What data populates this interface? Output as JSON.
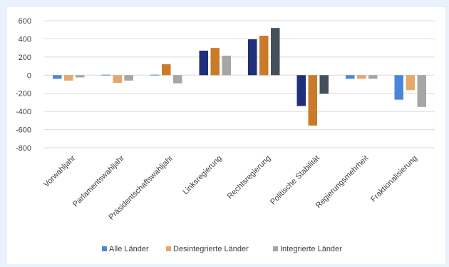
{
  "colors": {
    "background": "#e9f1fa",
    "plot_background": "#ffffff",
    "grid": "#d9d9d9"
  },
  "chart_data": {
    "type": "bar",
    "title": "",
    "xlabel": "",
    "ylabel": "",
    "ylim": [
      -800,
      600
    ],
    "y_ticks": [
      600,
      400,
      200,
      0,
      -200,
      -400,
      -600,
      -800
    ],
    "grid": true,
    "legend_position": "bottom",
    "categories": [
      "Vorwahljahr",
      "Parlamentswahljahr",
      "Präsidentschaftswahljahr",
      "Linksregierung",
      "Rechtsregierung",
      "Politische Stabilität",
      "Regierungsmehrheit",
      "Fraktionalisierung"
    ],
    "series": [
      {
        "name": "Alle Länder",
        "legend_color": "#4a86d8",
        "values": [
          -40,
          5,
          5,
          270,
          395,
          -340,
          -40,
          -270
        ],
        "colors": [
          "#4a86d8",
          "#4a86d8",
          "#4a86d8",
          "#1f2f7a",
          "#1f2f7a",
          "#1f2f7a",
          "#4a86d8",
          "#4a86d8"
        ]
      },
      {
        "name": "Desintegrierte Länder",
        "legend_color": "#e5a86a",
        "values": [
          -60,
          -85,
          120,
          300,
          435,
          -555,
          -40,
          -165
        ],
        "colors": [
          "#e5a86a",
          "#e5a86a",
          "#c97b29",
          "#c97b29",
          "#c97b29",
          "#c97b29",
          "#e5a86a",
          "#e5a86a"
        ]
      },
      {
        "name": "Integrierte Länder",
        "legend_color": "#a6a6a6",
        "values": [
          -25,
          -60,
          -90,
          215,
          520,
          -205,
          -40,
          -350
        ],
        "colors": [
          "#a6a6a6",
          "#a6a6a6",
          "#a6a6a6",
          "#a6a6a6",
          "#44505a",
          "#44505a",
          "#a6a6a6",
          "#a6a6a6"
        ]
      }
    ]
  }
}
